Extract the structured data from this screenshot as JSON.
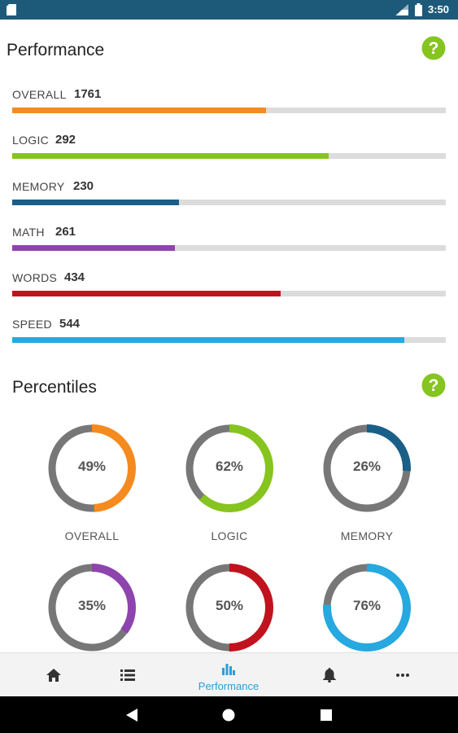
{
  "status_bar": {
    "time": "3:50"
  },
  "performance": {
    "title": "Performance",
    "help_icon": "help-icon",
    "rows": [
      {
        "label": "OVERALL",
        "value": "1761",
        "fraction": 0.585,
        "color": "#f58a1f"
      },
      {
        "label": "LOGIC",
        "value": "292",
        "fraction": 0.73,
        "color": "#86c41f"
      },
      {
        "label": "MEMORY",
        "value": "230",
        "fraction": 0.385,
        "color": "#1a5f87"
      },
      {
        "label": "MATH",
        "value": "261",
        "fraction": 0.375,
        "color": "#8e44ad"
      },
      {
        "label": "WORDS",
        "value": "434",
        "fraction": 0.62,
        "color": "#c0131e"
      },
      {
        "label": "SPEED",
        "value": "544",
        "fraction": 0.905,
        "color": "#26a8e0"
      }
    ]
  },
  "percentiles": {
    "title": "Percentiles",
    "help_icon": "help-icon",
    "items": [
      {
        "label": "OVERALL",
        "text": "49%",
        "percent": 49,
        "color": "#f58a1f"
      },
      {
        "label": "LOGIC",
        "text": "62%",
        "percent": 62,
        "color": "#86c41f"
      },
      {
        "label": "MEMORY",
        "text": "26%",
        "percent": 26,
        "color": "#1a5f87"
      },
      {
        "label": "",
        "text": "35%",
        "percent": 35,
        "color": "#8e44ad"
      },
      {
        "label": "",
        "text": "50%",
        "percent": 50,
        "color": "#c0131e"
      },
      {
        "label": "",
        "text": "76%",
        "percent": 76,
        "color": "#26a8e0"
      }
    ],
    "track_color": "#777777"
  },
  "bottom_nav": {
    "items": [
      {
        "icon": "home-icon",
        "label": ""
      },
      {
        "icon": "list-icon",
        "label": ""
      },
      {
        "icon": "bar-chart-icon",
        "label": "Performance",
        "active": true
      },
      {
        "icon": "bell-icon",
        "label": ""
      },
      {
        "icon": "more-icon",
        "label": ""
      }
    ],
    "active_color": "#2a9fd8"
  },
  "system_nav": {
    "icons": [
      "back-icon",
      "home-circle-icon",
      "recents-icon"
    ]
  }
}
